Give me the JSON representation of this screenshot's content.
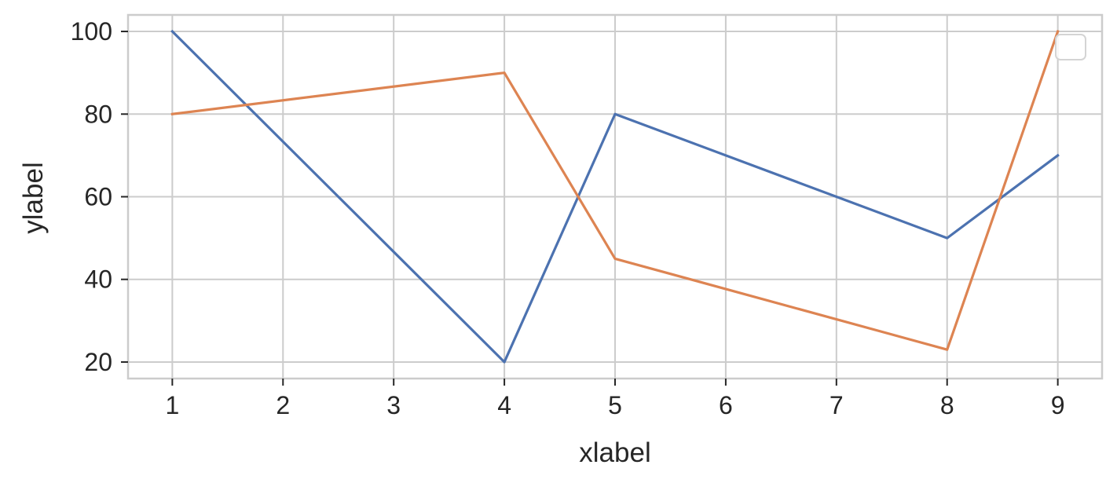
{
  "chart_data": {
    "type": "line",
    "title": "",
    "xlabel": "xlabel",
    "ylabel": "ylabel",
    "xlim": [
      0.6,
      9.4
    ],
    "ylim": [
      16,
      104
    ],
    "xticks": [
      1,
      2,
      3,
      4,
      5,
      6,
      7,
      8,
      9
    ],
    "yticks": [
      20,
      40,
      60,
      80,
      100
    ],
    "grid": true,
    "legend": {
      "location": "top-right",
      "entries": []
    },
    "series": [
      {
        "color": "#4c72b0",
        "points": [
          [
            1,
            100
          ],
          [
            4,
            20
          ],
          [
            5,
            80
          ],
          [
            8,
            50
          ],
          [
            9,
            70
          ]
        ]
      },
      {
        "color": "#dd8452",
        "points": [
          [
            1,
            80
          ],
          [
            4,
            90
          ],
          [
            5,
            45
          ],
          [
            8,
            23
          ],
          [
            9,
            100
          ]
        ]
      }
    ]
  }
}
